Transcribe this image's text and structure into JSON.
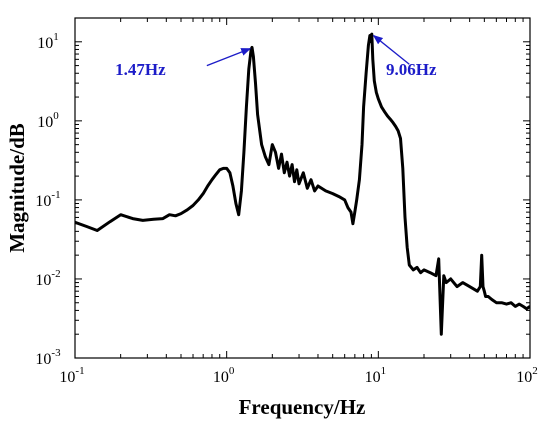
{
  "chart_data": {
    "type": "line",
    "title": "",
    "xlabel": "Frequency/Hz",
    "ylabel": "Magnitude/dB",
    "xscale": "log",
    "yscale": "log",
    "xlim": [
      0.1,
      100
    ],
    "ylim": [
      0.001,
      20
    ],
    "grid": false,
    "legend": "none",
    "x_ticks": [
      {
        "value": 0.1,
        "base": "10",
        "exp": "-1"
      },
      {
        "value": 1,
        "base": "10",
        "exp": "0"
      },
      {
        "value": 10,
        "base": "10",
        "exp": "1"
      },
      {
        "value": 100,
        "base": "10",
        "exp": "2"
      }
    ],
    "y_ticks": [
      {
        "value": 0.001,
        "base": "10",
        "exp": "-3"
      },
      {
        "value": 0.01,
        "base": "10",
        "exp": "-2"
      },
      {
        "value": 0.1,
        "base": "10",
        "exp": "-1"
      },
      {
        "value": 1,
        "base": "10",
        "exp": "0"
      },
      {
        "value": 10,
        "base": "10",
        "exp": "1"
      }
    ],
    "series": [
      {
        "color": "#000000",
        "x": [
          0.1,
          0.12,
          0.14,
          0.17,
          0.2,
          0.24,
          0.28,
          0.33,
          0.38,
          0.42,
          0.46,
          0.5,
          0.55,
          0.6,
          0.65,
          0.7,
          0.75,
          0.8,
          0.85,
          0.9,
          0.95,
          1.0,
          1.05,
          1.1,
          1.15,
          1.2,
          1.25,
          1.3,
          1.35,
          1.4,
          1.45,
          1.47,
          1.5,
          1.55,
          1.6,
          1.7,
          1.8,
          1.9,
          2.0,
          2.1,
          2.2,
          2.3,
          2.4,
          2.5,
          2.6,
          2.7,
          2.8,
          2.9,
          3.0,
          3.2,
          3.4,
          3.6,
          3.8,
          4.0,
          4.5,
          5.0,
          5.5,
          6.0,
          6.3,
          6.6,
          6.8,
          7.0,
          7.2,
          7.5,
          7.8,
          8.0,
          8.3,
          8.6,
          8.8,
          9.0,
          9.06,
          9.2,
          9.4,
          9.7,
          10.0,
          10.5,
          11.0,
          11.5,
          12.0,
          12.5,
          13.0,
          13.5,
          14.0,
          14.5,
          15.0,
          15.5,
          16.0,
          17.0,
          18.0,
          19.0,
          20.0,
          22.0,
          24.0,
          25.0,
          26.0,
          27.0,
          28.0,
          30.0,
          33.0,
          36.0,
          40.0,
          45.0,
          47.0,
          48.0,
          49.0,
          50.0,
          51.0,
          53.0,
          56.0,
          60.0,
          65.0,
          70.0,
          75.0,
          80.0,
          85.0,
          90.0,
          95.0,
          100.0
        ],
        "y": [
          0.052,
          0.046,
          0.041,
          0.053,
          0.065,
          0.058,
          0.055,
          0.057,
          0.058,
          0.065,
          0.063,
          0.067,
          0.075,
          0.085,
          0.1,
          0.12,
          0.15,
          0.18,
          0.21,
          0.24,
          0.25,
          0.25,
          0.22,
          0.15,
          0.09,
          0.065,
          0.13,
          0.4,
          1.5,
          4.5,
          8.0,
          8.5,
          6.5,
          3.0,
          1.2,
          0.5,
          0.35,
          0.28,
          0.5,
          0.4,
          0.25,
          0.38,
          0.22,
          0.3,
          0.2,
          0.28,
          0.17,
          0.24,
          0.16,
          0.22,
          0.14,
          0.18,
          0.13,
          0.15,
          0.13,
          0.12,
          0.11,
          0.1,
          0.08,
          0.07,
          0.05,
          0.07,
          0.1,
          0.18,
          0.5,
          1.5,
          4.0,
          9.0,
          12.0,
          10.0,
          12.5,
          6.0,
          3.2,
          2.3,
          1.9,
          1.5,
          1.3,
          1.15,
          1.05,
          0.95,
          0.85,
          0.75,
          0.6,
          0.25,
          0.06,
          0.025,
          0.015,
          0.013,
          0.014,
          0.012,
          0.013,
          0.012,
          0.011,
          0.018,
          0.002,
          0.011,
          0.009,
          0.01,
          0.008,
          0.009,
          0.008,
          0.007,
          0.008,
          0.02,
          0.008,
          0.007,
          0.006,
          0.006,
          0.0055,
          0.005,
          0.005,
          0.0048,
          0.005,
          0.0045,
          0.0048,
          0.0045,
          0.0042,
          0.0045
        ]
      }
    ],
    "annotations": [
      {
        "text": "1.47Hz",
        "color": "#1c1cc8",
        "label_x": 0.27,
        "label_y": 3.8,
        "arrow_from_x": 0.74,
        "arrow_from_y": 5.0,
        "arrow_to_x": 1.43,
        "arrow_to_y": 8.2
      },
      {
        "text": "9.06Hz",
        "color": "#1c1cc8",
        "label_x": 16.5,
        "label_y": 3.8,
        "arrow_from_x": 16.0,
        "arrow_from_y": 5.2,
        "arrow_to_x": 9.3,
        "arrow_to_y": 12.0
      }
    ]
  }
}
